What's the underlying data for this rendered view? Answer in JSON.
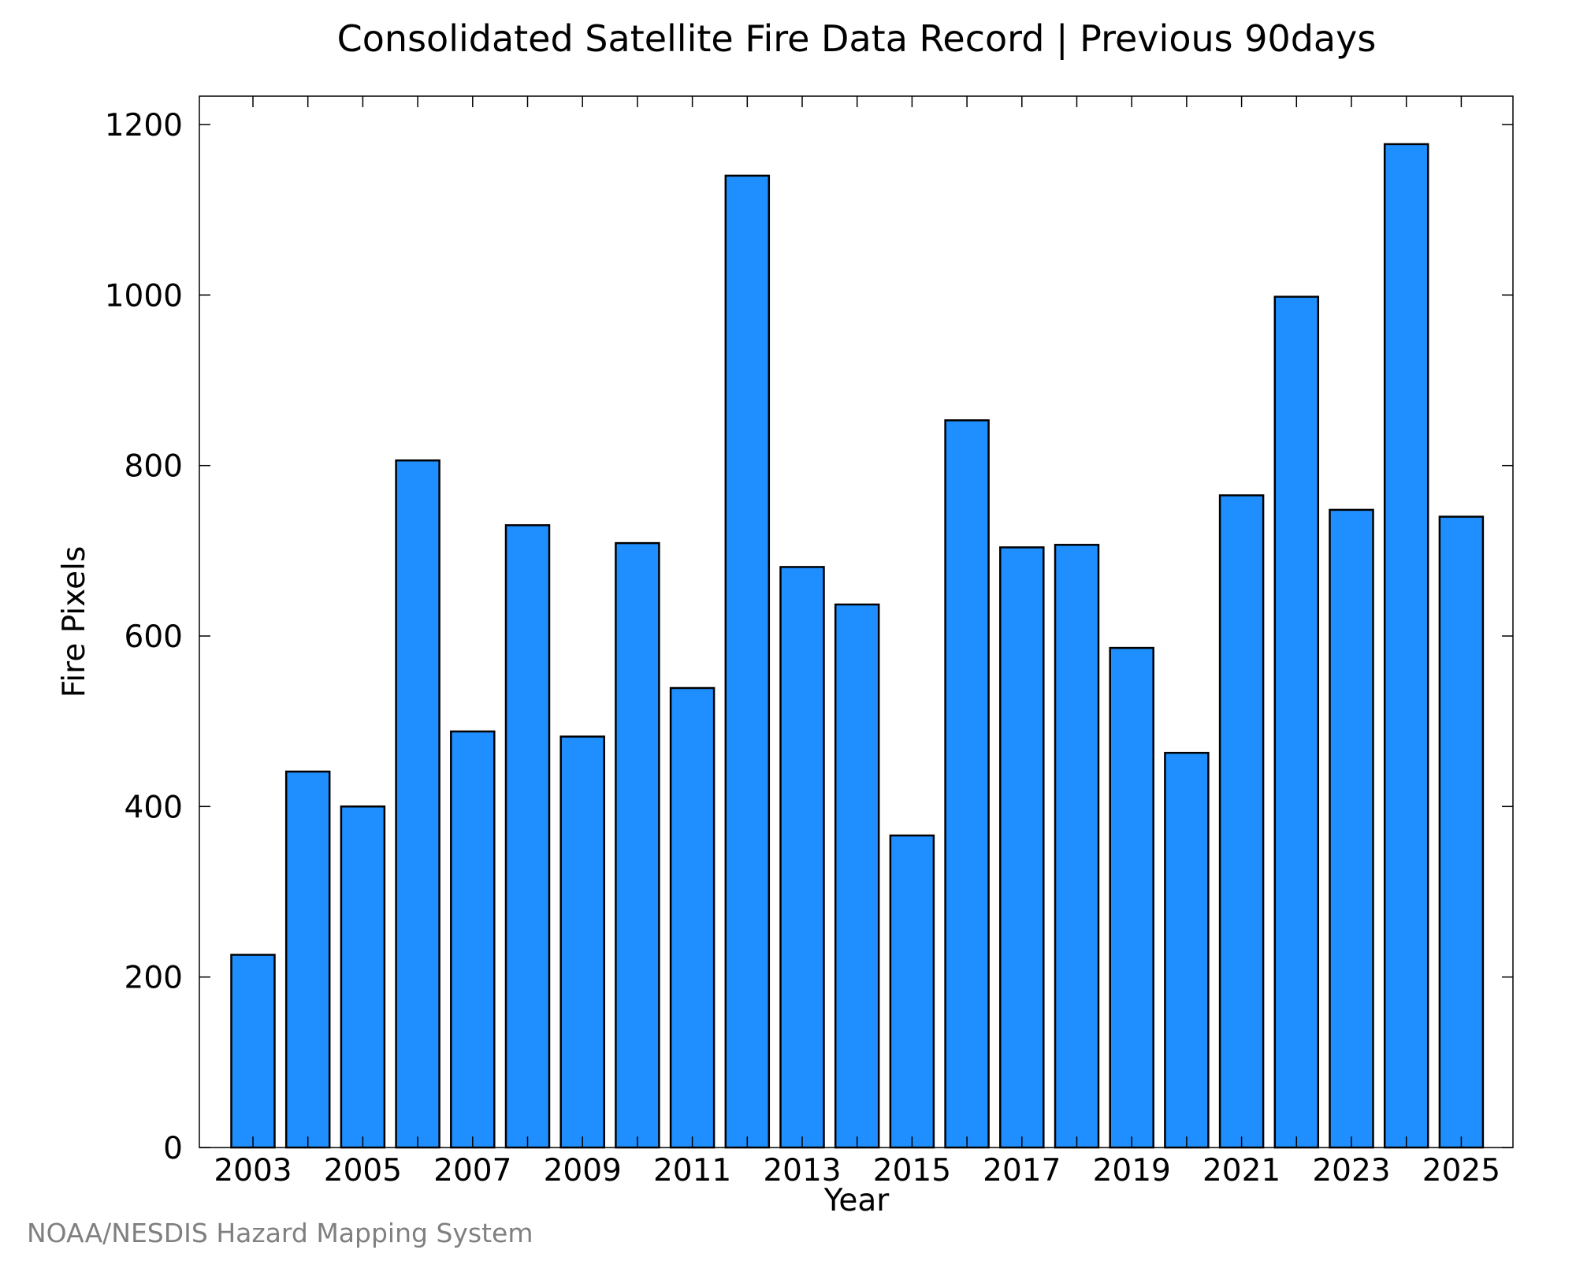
{
  "chart_data": {
    "type": "bar",
    "title": "Consolidated Satellite Fire Data Record | Previous 90days",
    "xlabel": "Year",
    "ylabel": "Fire Pixels",
    "credit": "NOAA/NESDIS Hazard Mapping System",
    "categories": [
      "2003",
      "2004",
      "2005",
      "2006",
      "2007",
      "2008",
      "2009",
      "2010",
      "2011",
      "2012",
      "2013",
      "2014",
      "2015",
      "2016",
      "2017",
      "2018",
      "2019",
      "2020",
      "2021",
      "2022",
      "2023",
      "2024",
      "2025"
    ],
    "values": [
      226,
      441,
      400,
      806,
      488,
      730,
      482,
      709,
      539,
      1140,
      681,
      637,
      366,
      853,
      704,
      707,
      586,
      463,
      765,
      998,
      748,
      1177,
      740
    ],
    "xticks": [
      "2003",
      "2005",
      "2007",
      "2009",
      "2011",
      "2013",
      "2015",
      "2017",
      "2019",
      "2021",
      "2023",
      "2025"
    ],
    "yticks": [
      "0",
      "200",
      "400",
      "600",
      "800",
      "1000",
      "1200"
    ],
    "ylim": [
      0,
      1200
    ],
    "grid": false,
    "bar_color": "#1f8fff",
    "bar_edge_color": "#000000"
  }
}
